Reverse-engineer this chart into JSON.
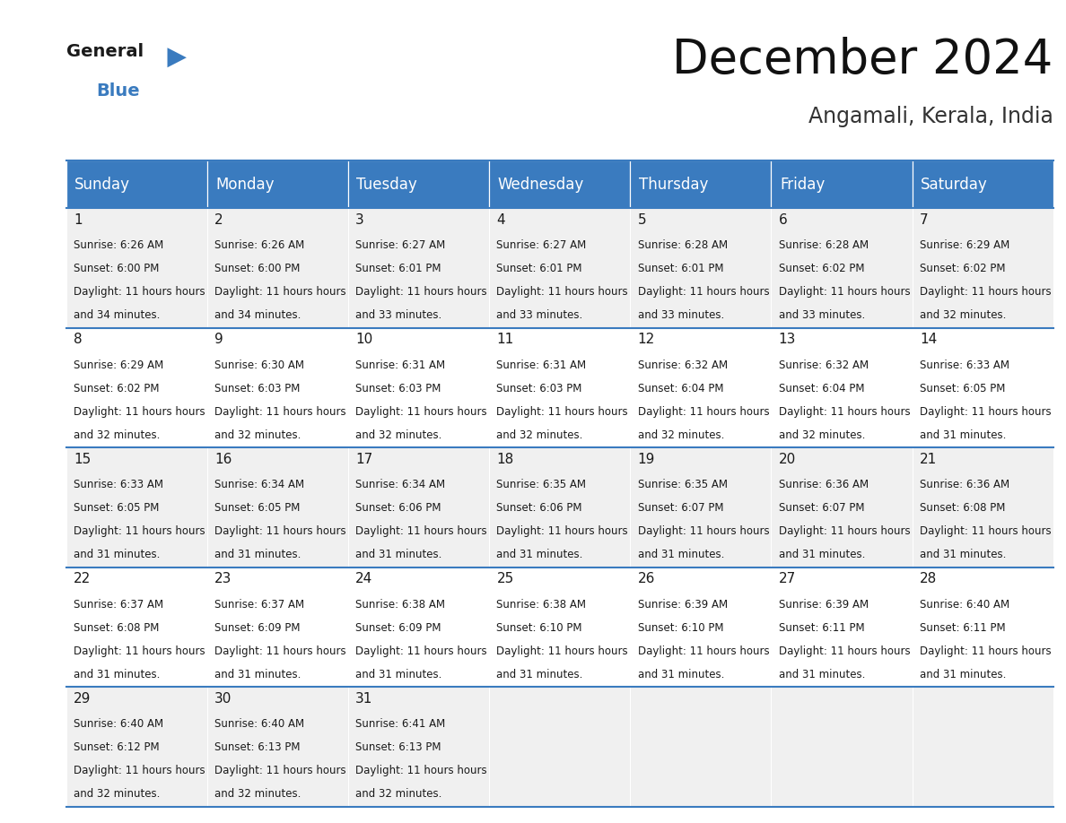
{
  "title": "December 2024",
  "subtitle": "Angamali, Kerala, India",
  "header_color": "#3a7bbf",
  "header_text_color": "#ffffff",
  "background_color": "#ffffff",
  "cell_bg_even": "#f0f0f0",
  "cell_bg_odd": "#ffffff",
  "separator_color": "#3a7bbf",
  "days_of_week": [
    "Sunday",
    "Monday",
    "Tuesday",
    "Wednesday",
    "Thursday",
    "Friday",
    "Saturday"
  ],
  "title_fontsize": 38,
  "subtitle_fontsize": 17,
  "header_fontsize": 12,
  "cell_day_fontsize": 11,
  "cell_text_fontsize": 8.5,
  "calendar": [
    [
      {
        "day": 1,
        "sunrise": "6:26 AM",
        "sunset": "6:00 PM",
        "daylight": "11 hours and 34 minutes."
      },
      {
        "day": 2,
        "sunrise": "6:26 AM",
        "sunset": "6:00 PM",
        "daylight": "11 hours and 34 minutes."
      },
      {
        "day": 3,
        "sunrise": "6:27 AM",
        "sunset": "6:01 PM",
        "daylight": "11 hours and 33 minutes."
      },
      {
        "day": 4,
        "sunrise": "6:27 AM",
        "sunset": "6:01 PM",
        "daylight": "11 hours and 33 minutes."
      },
      {
        "day": 5,
        "sunrise": "6:28 AM",
        "sunset": "6:01 PM",
        "daylight": "11 hours and 33 minutes."
      },
      {
        "day": 6,
        "sunrise": "6:28 AM",
        "sunset": "6:02 PM",
        "daylight": "11 hours and 33 minutes."
      },
      {
        "day": 7,
        "sunrise": "6:29 AM",
        "sunset": "6:02 PM",
        "daylight": "11 hours and 32 minutes."
      }
    ],
    [
      {
        "day": 8,
        "sunrise": "6:29 AM",
        "sunset": "6:02 PM",
        "daylight": "11 hours and 32 minutes."
      },
      {
        "day": 9,
        "sunrise": "6:30 AM",
        "sunset": "6:03 PM",
        "daylight": "11 hours and 32 minutes."
      },
      {
        "day": 10,
        "sunrise": "6:31 AM",
        "sunset": "6:03 PM",
        "daylight": "11 hours and 32 minutes."
      },
      {
        "day": 11,
        "sunrise": "6:31 AM",
        "sunset": "6:03 PM",
        "daylight": "11 hours and 32 minutes."
      },
      {
        "day": 12,
        "sunrise": "6:32 AM",
        "sunset": "6:04 PM",
        "daylight": "11 hours and 32 minutes."
      },
      {
        "day": 13,
        "sunrise": "6:32 AM",
        "sunset": "6:04 PM",
        "daylight": "11 hours and 32 minutes."
      },
      {
        "day": 14,
        "sunrise": "6:33 AM",
        "sunset": "6:05 PM",
        "daylight": "11 hours and 31 minutes."
      }
    ],
    [
      {
        "day": 15,
        "sunrise": "6:33 AM",
        "sunset": "6:05 PM",
        "daylight": "11 hours and 31 minutes."
      },
      {
        "day": 16,
        "sunrise": "6:34 AM",
        "sunset": "6:05 PM",
        "daylight": "11 hours and 31 minutes."
      },
      {
        "day": 17,
        "sunrise": "6:34 AM",
        "sunset": "6:06 PM",
        "daylight": "11 hours and 31 minutes."
      },
      {
        "day": 18,
        "sunrise": "6:35 AM",
        "sunset": "6:06 PM",
        "daylight": "11 hours and 31 minutes."
      },
      {
        "day": 19,
        "sunrise": "6:35 AM",
        "sunset": "6:07 PM",
        "daylight": "11 hours and 31 minutes."
      },
      {
        "day": 20,
        "sunrise": "6:36 AM",
        "sunset": "6:07 PM",
        "daylight": "11 hours and 31 minutes."
      },
      {
        "day": 21,
        "sunrise": "6:36 AM",
        "sunset": "6:08 PM",
        "daylight": "11 hours and 31 minutes."
      }
    ],
    [
      {
        "day": 22,
        "sunrise": "6:37 AM",
        "sunset": "6:08 PM",
        "daylight": "11 hours and 31 minutes."
      },
      {
        "day": 23,
        "sunrise": "6:37 AM",
        "sunset": "6:09 PM",
        "daylight": "11 hours and 31 minutes."
      },
      {
        "day": 24,
        "sunrise": "6:38 AM",
        "sunset": "6:09 PM",
        "daylight": "11 hours and 31 minutes."
      },
      {
        "day": 25,
        "sunrise": "6:38 AM",
        "sunset": "6:10 PM",
        "daylight": "11 hours and 31 minutes."
      },
      {
        "day": 26,
        "sunrise": "6:39 AM",
        "sunset": "6:10 PM",
        "daylight": "11 hours and 31 minutes."
      },
      {
        "day": 27,
        "sunrise": "6:39 AM",
        "sunset": "6:11 PM",
        "daylight": "11 hours and 31 minutes."
      },
      {
        "day": 28,
        "sunrise": "6:40 AM",
        "sunset": "6:11 PM",
        "daylight": "11 hours and 31 minutes."
      }
    ],
    [
      {
        "day": 29,
        "sunrise": "6:40 AM",
        "sunset": "6:12 PM",
        "daylight": "11 hours and 32 minutes."
      },
      {
        "day": 30,
        "sunrise": "6:40 AM",
        "sunset": "6:13 PM",
        "daylight": "11 hours and 32 minutes."
      },
      {
        "day": 31,
        "sunrise": "6:41 AM",
        "sunset": "6:13 PM",
        "daylight": "11 hours and 32 minutes."
      },
      null,
      null,
      null,
      null
    ]
  ]
}
